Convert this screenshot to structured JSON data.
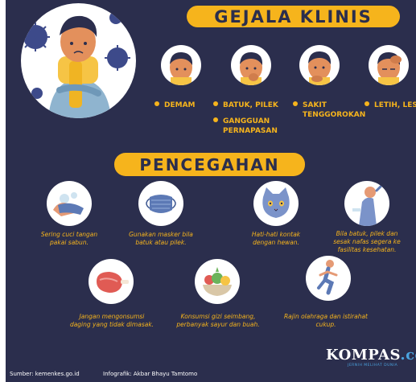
{
  "header": {
    "title": "GEJALA KLINIS"
  },
  "symptoms": [
    {
      "label": "DEMAM"
    },
    {
      "label": "BATUK, PILEK"
    },
    {
      "label": "SAKIT TENGGOROKAN"
    },
    {
      "label": "LETIH, LESU"
    },
    {
      "label": "GANGGUAN PERNAPASAN"
    }
  ],
  "symptom_lines": {
    "batuk": "BATUK, PILEK",
    "gangguan_1": "GANGGUAN",
    "gangguan_2": "PERNAPASAN",
    "sakit_1": "SAKIT",
    "sakit_2": "TENGGOROKAN",
    "letih": "LETIH, LESU"
  },
  "prevention": {
    "title": "PENCEGAHAN",
    "items": [
      {
        "line1": "Sering cuci tangan",
        "line2": "pakai sabun."
      },
      {
        "line1": "Gunakan masker bila",
        "line2": "batuk atau pilek."
      },
      {
        "line1": "Hati-hati kontak",
        "line2": "dengan hewan."
      },
      {
        "line1": "Bila batuk, pilek dan",
        "line2": "sesak nafas segera ke",
        "line3": "fasilitas kesehatan."
      },
      {
        "line1": "Jangan mengonsumsi",
        "line2": "daging yang tidak dimasak."
      },
      {
        "line1": "Konsumsi gizi seimbang,",
        "line2": "perbanyak sayur dan buah."
      },
      {
        "line1": "Rajin olahraga dan istirahat",
        "line2": "cukup."
      }
    ]
  },
  "footer": {
    "source": "Sumber:  kemenkes.go.id",
    "credit": "Infografik: Akbar Bhayu Tamtomo",
    "logo_main": "KOMPAS",
    "logo_domain": ".com",
    "tagline": "JERNIH MELIHAT DUNIA"
  },
  "colors": {
    "background": "#2b2e4d",
    "accent": "#f6b41c",
    "brand_blue": "#4aa3df"
  },
  "icons": [
    "virus-icon",
    "sick-person-icon",
    "hand-washing-icon",
    "face-mask-icon",
    "cat-icon",
    "hospital-icon",
    "meat-icon",
    "vegetables-icon",
    "runner-icon"
  ]
}
